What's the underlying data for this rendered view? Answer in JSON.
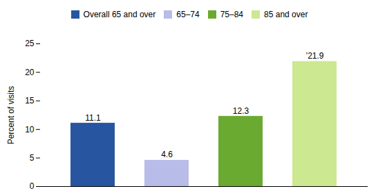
{
  "chart_data": {
    "type": "bar",
    "categories": [
      "Overall 65 and over",
      "65–74",
      "75–84",
      "85 and over"
    ],
    "values": [
      11.1,
      4.6,
      12.3,
      21.9
    ],
    "value_labels": [
      "11.1",
      "4.6",
      "12.3",
      "’21.9"
    ],
    "colors": [
      "#2855a0",
      "#b8bce8",
      "#6aaa30",
      "#cce890"
    ],
    "ylabel": "Percent of visits",
    "ylim": [
      0,
      25
    ],
    "yticks": [
      0,
      5,
      10,
      15,
      20,
      25
    ],
    "grid": false,
    "legend": "top",
    "data_labels": true,
    "tick_labels": "y"
  }
}
